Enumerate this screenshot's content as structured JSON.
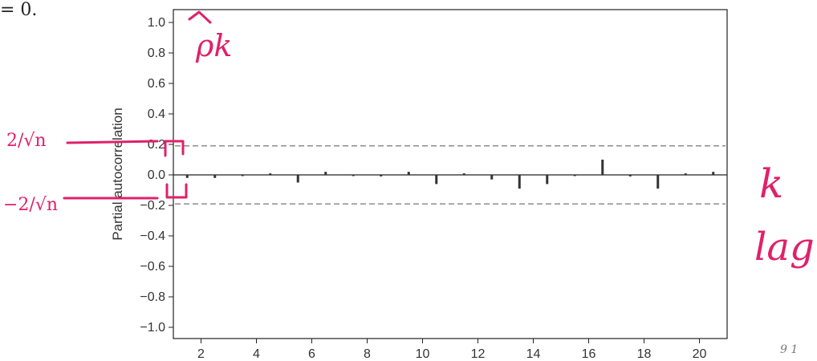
{
  "fragment_text": "= 0.",
  "corner_mark": "9 1",
  "chart_data": {
    "type": "bar",
    "ylabel": "Partial autocorrelation",
    "xlabel": "",
    "xlim": [
      1,
      21
    ],
    "ylim": [
      -1.0,
      1.0
    ],
    "xticks": [
      2,
      4,
      6,
      8,
      10,
      12,
      14,
      16,
      18,
      20
    ],
    "yticks": [
      1.0,
      0.8,
      0.6,
      0.4,
      0.2,
      0.0,
      -0.2,
      -0.4,
      -0.6,
      -0.8,
      -1.0
    ],
    "ytick_labels": [
      "1.0",
      "0.8",
      "0.6",
      "0.4",
      "0.2",
      "0.0",
      "−0.2",
      "−0.4",
      "−0.6",
      "−0.8",
      "−1.0"
    ],
    "x": [
      1,
      2,
      3,
      4,
      5,
      6,
      7,
      8,
      9,
      10,
      11,
      12,
      13,
      14,
      15,
      16,
      17,
      18,
      19,
      20
    ],
    "values": [
      -0.02,
      -0.02,
      0.0,
      0.01,
      -0.05,
      0.02,
      0.0,
      -0.01,
      0.02,
      -0.06,
      0.01,
      -0.03,
      -0.09,
      -0.06,
      0.0,
      0.1,
      -0.01,
      -0.09,
      0.01,
      0.02
    ],
    "confidence_bounds": [
      0.19,
      -0.19
    ],
    "grid": false,
    "legend": "none"
  },
  "annotations": {
    "rho_k": "ρk",
    "upper_bound_fraction": "2/√n",
    "lower_bound_fraction": "−2/√n",
    "k": "k",
    "lag": "lag"
  }
}
